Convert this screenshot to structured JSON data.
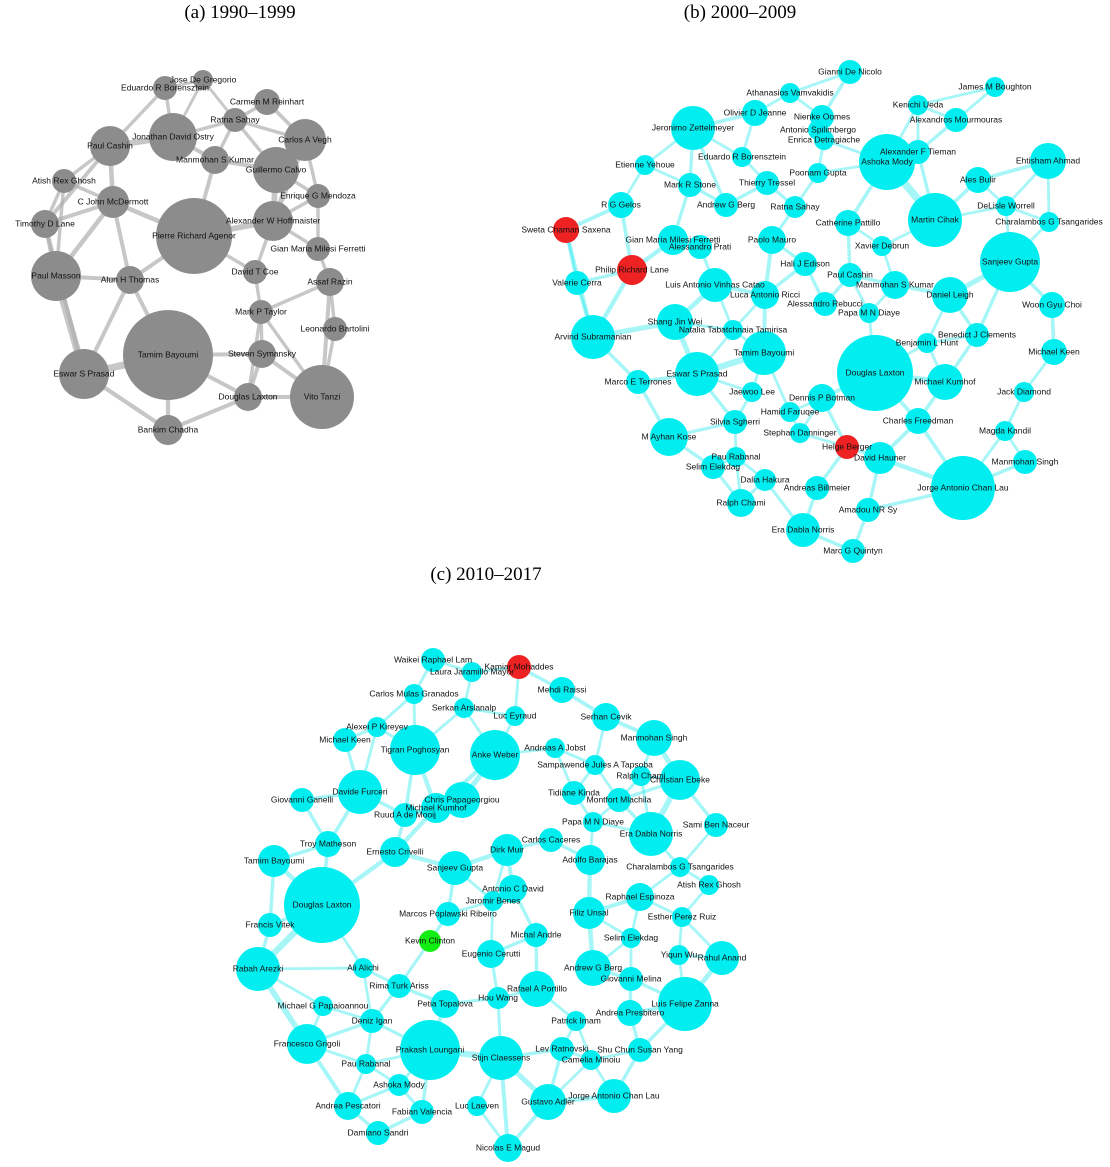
{
  "panels": [
    {
      "title": "(a) 1990–1999",
      "nodes": [
        "Jose De Gregorio",
        "Eduardo R Borensztein",
        "Carmen M Reinhart",
        "Ratna Sahay",
        "Jonathan David Ostry",
        "Paul Cashin",
        "Carlos A Vegh",
        "Manmohan S Kumar",
        "Guillermo Calvo",
        "Atish Rex Ghosh",
        "C John McDermott",
        "Enrique G Mendoza",
        "Alexander W Hoffmaister",
        "Timothy D Lane",
        "Pierre Richard Agenor",
        "Gian Maria Milesi Ferretti",
        "David T Coe",
        "Paul Masson",
        "Alun H Thomas",
        "Assaf Razin",
        "Mark P Taylor",
        "Leonardo Bartolini",
        "Tamim Bayoumi",
        "Steven Symansky",
        "Eswar S Prasad",
        "Douglas Laxton",
        "Vito Tanzi",
        "Bankim Chadha"
      ]
    },
    {
      "title": "(b) 2000–2009",
      "nodes": [
        "Gianni De Nicolo",
        "Athanasios Vamvakidis",
        "James M Boughton",
        "Kenichi Ueda",
        "Olivier D Jeanne",
        "Nienke Oomes",
        "Alexandros Mourmouras",
        "Antonio Spilimbergo",
        "Jeronimo Zettelmeyer",
        "Enrica Detragiache",
        "Alexander F Tieman",
        "Ashoka Mody",
        "Ehtisham Ahmad",
        "Eduardo R Borensztein",
        "Poonam Gupta",
        "Etienne Yehoue",
        "Thierry Tressel",
        "Mark R Stone",
        "Ales Bulir",
        "Andrew G Berg",
        "Ratna Sahay",
        "DeLisle Worrell",
        "R G Gelos",
        "Catherine Pattillo",
        "Charalambos G Tsangarides",
        "Martin Cihak",
        "Sweta Chaman Saxena",
        "Gian Maria Milesi Ferretti",
        "Alessandro Prati",
        "Paolo Mauro",
        "Xavier Debrun",
        "Philip Richard Lane",
        "Valerie Cerra",
        "Hali J Edison",
        "Sanjeev Gupta",
        "Paul Cashin",
        "Luis Antonio Vinhas Catao",
        "Luca Antonio Ricci",
        "Manmohan S Kumar",
        "Alessandro Rebucci",
        "Daniel Leigh",
        "Woon Gyu Choi",
        "Papa M N Diaye",
        "Shang Jin Wei",
        "Natalia Tabatchnaia Tamirisa",
        "Arvind Subramanian",
        "Benedict J Clements",
        "Benjamin L Hunt",
        "Tamim Bayoumi",
        "Michael Keen",
        "Douglas Laxton",
        "Eswar S Prasad",
        "Marco E Terrones",
        "Michael Kumhof",
        "Jaewoo Lee",
        "Jack Diamond",
        "Dennis P Botman",
        "Hamid Faruqee",
        "Charles Freedman",
        "Silvia Sgherri",
        "Magda Kandil",
        "Stephan Danninger",
        "M Ayhan Kose",
        "Helge Berger",
        "David Hauner",
        "Pau Rabanal",
        "Selim Elekdag",
        "Manmohan Singh",
        "Dalia Hakura",
        "Andreas Billmeier",
        "Jorge Antonio Chan Lau",
        "Ralph Chami",
        "Amadou NR Sy",
        "Era Dabla Norris",
        "Marc G Quintyn"
      ]
    },
    {
      "title": "(c) 2010–2017",
      "nodes": [
        "Waikei Raphael Lam",
        "Kamiar Mohaddes",
        "Laura Jaramillo Mayor",
        "Carlos Mulas Granados",
        "Mehdi Raissi",
        "Serkan Arslanalp",
        "Alexei P Kireyev",
        "Luc Eyraud",
        "Serhan Cevik",
        "Michael Keen",
        "Manmohan Singh",
        "Tigran Poghosyan",
        "Anke Weber",
        "Andreas A Jobst",
        "Sampawende Jules A Tapsoba",
        "Ralph Chami",
        "Christian Ebeke",
        "Davide Furceri",
        "Giovanni Ganelli",
        "Chris Papageorgiou",
        "Tidiane Kinda",
        "Michael Kumhof",
        "Montfort Mlachila",
        "Ruud A de Mooij",
        "Sami Ben Naceur",
        "Papa M N Diaye",
        "Era Dabla Norris",
        "Troy Matheson",
        "Carlos Caceres",
        "Ernesto Crivelli",
        "Dirk Muir",
        "Tamim Bayoumi",
        "Adolfo Barajas",
        "Charalambos G Tsangarides",
        "Sanjeev Gupta",
        "Atish Rex Ghosh",
        "Antonio C David",
        "Raphael Espinoza",
        "Jaromir Benes",
        "Douglas Laxton",
        "Marcos Poplawski Ribeiro",
        "Esther Perez Ruiz",
        "Filiz Unsal",
        "Francis Vitek",
        "Michal Andrle",
        "Kevin Clinton",
        "Selim Elekdag",
        "Eugenio Cerutti",
        "Yiqun Wu",
        "Rahul Anand",
        "Rabah Arezki",
        "Ali Alichi",
        "Andrew G Berg",
        "Giovanni Melina",
        "Rima Turk Ariss",
        "Rafael A Portillo",
        "Hou Wang",
        "Petia Topalova",
        "Luis Felipe Zanna",
        "Michael G Papaioannou",
        "Andrea Presbitero",
        "Deniz Igan",
        "Patrick Imam",
        "Francesco Grigoli",
        "Prakash Loungani",
        "Stijn Claessens",
        "Lev Ratnovski",
        "Shu Chun Susan Yang",
        "Camelia Minoiu",
        "Pau Rabanal",
        "Ashoka Mody",
        "Jorge Antonio Chan Lau",
        "Gustavo Adler",
        "Andrea Pescatori",
        "Luc Laeven",
        "Fabian Valencia",
        "Damiano Sandri",
        "Nicolas E Magud"
      ]
    }
  ]
}
